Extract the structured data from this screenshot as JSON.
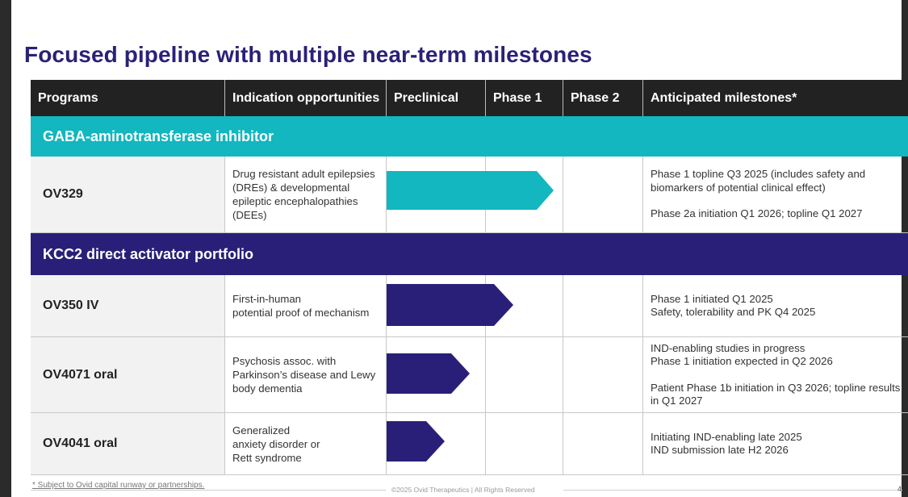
{
  "title": "Focused pipeline with multiple near-term milestones",
  "header": {
    "programs": "Programs",
    "indication": "Indication opportunities",
    "preclinical": "Preclinical",
    "phase1": "Phase 1",
    "phase2": "Phase 2",
    "milestones": "Anticipated milestones*"
  },
  "colors": {
    "teal": "#12b7bf",
    "navy": "#2a1f78",
    "title": "#2a2178",
    "header_bg": "#222222"
  },
  "sections": [
    {
      "label": "GABA-aminotransferase inhibitor"
    },
    {
      "label": "KCC2 direct activator portfolio"
    }
  ],
  "programs": [
    {
      "name": "OV329",
      "indication": [
        "Drug resistant adult epilepsies",
        "(DREs) & developmental",
        "epileptic encephalopathies",
        "(DEEs)"
      ],
      "progress_stage": "Phase 1",
      "milestones": [
        [
          "Phase 1 topline Q3 2025 (includes safety and",
          "biomarkers of potential clinical effect)"
        ],
        [
          "Phase 2a initiation Q1 2026; topline Q1 2027"
        ]
      ]
    },
    {
      "name": "OV350 IV",
      "indication": [
        "First-in-human",
        "potential proof of mechanism"
      ],
      "progress_stage": "Phase 1",
      "milestones": [
        [
          "Phase 1 initiated Q1 2025",
          "Safety, tolerability and PK Q4 2025"
        ]
      ]
    },
    {
      "name": "OV4071 oral",
      "indication": [
        "Psychosis assoc. with",
        "Parkinson’s disease and Lewy",
        "body dementia"
      ],
      "progress_stage": "Preclinical",
      "milestones": [
        [
          "IND-enabling studies in progress",
          "Phase 1 initiation expected in Q2 2026"
        ],
        [
          "Patient Phase 1b initiation in Q3 2026; topline results",
          "in Q1 2027"
        ]
      ]
    },
    {
      "name": "OV4041 oral",
      "indication": [
        "Generalized",
        "anxiety disorder or",
        "Rett syndrome"
      ],
      "progress_stage": "Preclinical",
      "milestones": [
        [
          "Initiating IND-enabling late 2025",
          "IND submission late H2 2026"
        ]
      ]
    }
  ],
  "footer": {
    "footnote": "* Subject to Ovid capital runway or partnerships.",
    "copyright": "©2025 Ovid Therapeutics | All Rights Reserved",
    "page": "4"
  }
}
